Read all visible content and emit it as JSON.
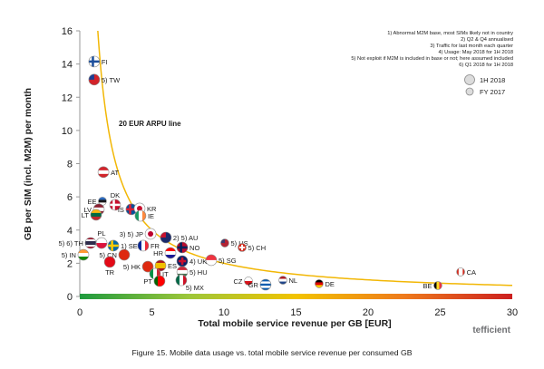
{
  "caption": "Figure 15. Mobile data usage vs. total mobile service revenue per consumed GB",
  "logo": "tefficient",
  "notes": [
    "1) Abnormal M2M base, most SIMs likely not in country",
    "2) Q2 & Q4 annualised",
    "3) Traffic for last month each quarter",
    "4) Usage: May 2018 for 1H 2018",
    "5) Not exploit if M2M is included in base or not; here assumed included",
    "6) Q1 2018 for 1H 2018"
  ],
  "legend": {
    "position": "top-right",
    "items": [
      {
        "label": "1H 2018",
        "marker": "large-circle"
      },
      {
        "label": "FY 2017",
        "marker": "small-circle"
      }
    ]
  },
  "colors": {
    "curve": "#f2b705",
    "curve_label": "#f2a900",
    "axis_line": "#9a9a9a",
    "axis_bar": [
      "#1e9a3e",
      "#9cc63a",
      "#f2c300",
      "#ee7a1c",
      "#cc1f1f"
    ],
    "legend_marker": "#dcdcdc"
  },
  "chart_data": {
    "type": "scatter",
    "xlabel": "Total mobile service revenue per GB [EUR]",
    "ylabel": "GB per SIM (incl. M2M) per month",
    "xlim": [
      0,
      30
    ],
    "ylim": [
      0,
      16
    ],
    "xticks": [
      0,
      5,
      10,
      15,
      20,
      25,
      30
    ],
    "yticks": [
      0,
      2,
      4,
      6,
      8,
      10,
      12,
      14,
      16
    ],
    "grid": false,
    "reference_curve": {
      "label": "20 EUR ARPU line",
      "arpu": 20
    },
    "points": [
      {
        "label": "FI",
        "x": 1.0,
        "y": 14.15,
        "period": "1H 2018",
        "label_side": "right",
        "flag": {
          "style": "cross",
          "colors": [
            "#ffffff",
            "#1d4f9c"
          ]
        }
      },
      {
        "label": "5) TW",
        "x": 1.0,
        "y": 13.06,
        "period": "1H 2018",
        "label_side": "right",
        "flag": {
          "style": "canton",
          "colors": [
            "#d2232a",
            "#1b3f95"
          ]
        }
      },
      {
        "label": "AT",
        "x": 1.64,
        "y": 7.49,
        "period": "1H 2018",
        "label_side": "right",
        "flag": {
          "style": "h",
          "colors": [
            "#d2232a",
            "#ffffff",
            "#d2232a"
          ]
        }
      },
      {
        "label": "DK",
        "x": 2.45,
        "y": 5.52,
        "period": "1H 2018",
        "label_side": "above",
        "flag": {
          "style": "cross",
          "colors": [
            "#c8102e",
            "#ffffff"
          ]
        }
      },
      {
        "label": "EE",
        "x": 1.57,
        "y": 5.74,
        "period": "FY 2017",
        "label_side": "left",
        "flag": {
          "style": "h",
          "colors": [
            "#2b6cc4",
            "#1a1a1a",
            "#ffffff"
          ]
        }
      },
      {
        "label": "LV",
        "x": 1.32,
        "y": 5.25,
        "period": "1H 2018",
        "label_side": "left",
        "flag": {
          "style": "h",
          "colors": [
            "#8c2031",
            "#ffffff",
            "#8c2031"
          ]
        }
      },
      {
        "label": "LT",
        "x": 1.13,
        "y": 4.92,
        "period": "1H 2018",
        "label_side": "left",
        "flag": {
          "style": "h",
          "colors": [
            "#fdb913",
            "#006a44",
            "#c1272d"
          ]
        }
      },
      {
        "label": "IS",
        "x": 3.58,
        "y": 5.25,
        "period": "1H 2018",
        "label_side": "left",
        "flag": {
          "style": "cross",
          "colors": [
            "#02529c",
            "#dc1e35"
          ]
        }
      },
      {
        "label": "KR",
        "x": 4.15,
        "y": 5.3,
        "period": "1H 2018",
        "label_side": "right",
        "flag": {
          "style": "disc",
          "colors": [
            "#ffffff",
            "#c8102e"
          ]
        }
      },
      {
        "label": "IE",
        "x": 4.21,
        "y": 4.86,
        "period": "1H 2018",
        "label_side": "right",
        "flag": {
          "style": "v",
          "colors": [
            "#169b62",
            "#ffffff",
            "#ff883e"
          ]
        }
      },
      {
        "label": "3) 5) JP",
        "x": 4.91,
        "y": 3.77,
        "period": "1H 2018",
        "label_side": "left",
        "flag": {
          "style": "disc",
          "colors": [
            "#ffffff",
            "#bc002d"
          ]
        }
      },
      {
        "label": "2) 5) AU",
        "x": 5.97,
        "y": 3.55,
        "period": "1H 2018",
        "label_side": "right",
        "flag": {
          "style": "canton",
          "colors": [
            "#1b2a6b",
            "#c8102e"
          ]
        }
      },
      {
        "label": "5) US",
        "x": 10.06,
        "y": 3.22,
        "period": "FY 2017",
        "label_side": "right",
        "flag": {
          "style": "canton",
          "colors": [
            "#b22234",
            "#3c3b6e"
          ]
        }
      },
      {
        "label": "5) CH",
        "x": 11.26,
        "y": 2.95,
        "period": "FY 2017",
        "label_side": "right",
        "flag": {
          "style": "plus",
          "colors": [
            "#d52b1e",
            "#ffffff"
          ]
        }
      },
      {
        "label": "NO",
        "x": 7.11,
        "y": 2.95,
        "period": "1H 2018",
        "label_side": "right",
        "flag": {
          "style": "cross",
          "colors": [
            "#ba0c2f",
            "#00205b"
          ]
        }
      },
      {
        "label": "5) 6) TH",
        "x": 0.75,
        "y": 3.22,
        "period": "1H 2018",
        "label_side": "left",
        "flag": {
          "style": "h",
          "colors": [
            "#a51931",
            "#f4f5f8",
            "#2d2a4a",
            "#2d2a4a",
            "#f4f5f8",
            "#a51931"
          ]
        }
      },
      {
        "label": "PL",
        "x": 1.51,
        "y": 3.22,
        "period": "1H 2018",
        "label_side": "above",
        "flag": {
          "style": "h",
          "colors": [
            "#ffffff",
            "#dc143c"
          ]
        }
      },
      {
        "label": "5) IN",
        "x": 0.25,
        "y": 2.51,
        "period": "1H 2018",
        "label_side": "left",
        "flag": {
          "style": "h",
          "colors": [
            "#ff9933",
            "#ffffff",
            "#138808"
          ]
        }
      },
      {
        "label": "5) CN",
        "x": 3.08,
        "y": 2.51,
        "period": "1H 2018",
        "label_side": "left",
        "flag": {
          "style": "solid",
          "colors": [
            "#de2910"
          ]
        }
      },
      {
        "label": "1) SE",
        "x": 2.33,
        "y": 3.06,
        "period": "1H 2018",
        "label_side": "right",
        "flag": {
          "style": "cross",
          "colors": [
            "#006aa7",
            "#fecc00"
          ]
        }
      },
      {
        "label": "TR",
        "x": 2.08,
        "y": 2.08,
        "period": "1H 2018",
        "label_side": "below",
        "flag": {
          "style": "solid",
          "colors": [
            "#e30a17"
          ]
        }
      },
      {
        "label": "FR",
        "x": 4.4,
        "y": 3.06,
        "period": "1H 2018",
        "label_side": "right",
        "flag": {
          "style": "v",
          "colors": [
            "#002395",
            "#ffffff",
            "#ed2939"
          ]
        }
      },
      {
        "label": "5) HK",
        "x": 4.72,
        "y": 1.8,
        "period": "1H 2018",
        "label_side": "left",
        "flag": {
          "style": "solid",
          "colors": [
            "#de2910"
          ]
        }
      },
      {
        "label": "ES",
        "x": 5.6,
        "y": 1.86,
        "period": "1H 2018",
        "label_side": "right",
        "flag": {
          "style": "h",
          "colors": [
            "#aa151b",
            "#f1bf00",
            "#f1bf00",
            "#aa151b"
          ]
        }
      },
      {
        "label": "IT",
        "x": 5.22,
        "y": 1.37,
        "period": "1H 2018",
        "label_side": "right",
        "flag": {
          "style": "v",
          "colors": [
            "#009246",
            "#ffffff",
            "#ce2b37"
          ]
        }
      },
      {
        "label": "HR",
        "x": 6.29,
        "y": 2.62,
        "period": "1H 2018",
        "label_side": "left",
        "flag": {
          "style": "h",
          "colors": [
            "#ff0000",
            "#ffffff",
            "#171796"
          ]
        }
      },
      {
        "label": "4) UK",
        "x": 7.11,
        "y": 2.13,
        "period": "1H 2018",
        "label_side": "right",
        "flag": {
          "style": "plus",
          "colors": [
            "#012169",
            "#c8102e"
          ]
        }
      },
      {
        "label": "5) SG",
        "x": 9.12,
        "y": 2.19,
        "period": "1H 2018",
        "label_side": "right",
        "flag": {
          "style": "h",
          "colors": [
            "#ef3340",
            "#ffffff"
          ]
        }
      },
      {
        "label": "5) HU",
        "x": 7.11,
        "y": 1.48,
        "period": "1H 2018",
        "label_side": "right",
        "flag": {
          "style": "h",
          "colors": [
            "#ce2939",
            "#ffffff",
            "#477050"
          ]
        }
      },
      {
        "label": "PT",
        "x": 5.53,
        "y": 0.93,
        "period": "1H 2018",
        "label_side": "left",
        "flag": {
          "style": "v",
          "colors": [
            "#006600",
            "#ff0000",
            "#ff0000"
          ]
        }
      },
      {
        "label": "5) MX",
        "x": 7.04,
        "y": 0.98,
        "period": "1H 2018",
        "label_side": "below-right",
        "flag": {
          "style": "v",
          "colors": [
            "#006847",
            "#ffffff",
            "#ce1126"
          ]
        }
      },
      {
        "label": "CZ",
        "x": 11.7,
        "y": 0.93,
        "period": "FY 2017",
        "label_side": "left",
        "flag": {
          "style": "h",
          "colors": [
            "#ffffff",
            "#d7141a"
          ]
        }
      },
      {
        "label": "GR",
        "x": 12.89,
        "y": 0.71,
        "period": "1H 2018",
        "label_side": "left",
        "flag": {
          "style": "h",
          "colors": [
            "#0d5eaf",
            "#ffffff",
            "#0d5eaf",
            "#ffffff",
            "#0d5eaf"
          ]
        }
      },
      {
        "label": "NL",
        "x": 14.09,
        "y": 0.98,
        "period": "FY 2017",
        "label_side": "right",
        "flag": {
          "style": "h",
          "colors": [
            "#ae1c28",
            "#ffffff",
            "#21468b"
          ]
        }
      },
      {
        "label": "DE",
        "x": 16.6,
        "y": 0.77,
        "period": "FY 2017",
        "label_side": "right",
        "flag": {
          "style": "h",
          "colors": [
            "#000000",
            "#dd0000",
            "#ffce00"
          ]
        }
      },
      {
        "label": "BE",
        "x": 24.84,
        "y": 0.66,
        "period": "FY 2017",
        "label_side": "left",
        "flag": {
          "style": "v",
          "colors": [
            "#000000",
            "#fdda24",
            "#ef3340"
          ]
        }
      },
      {
        "label": "CA",
        "x": 26.42,
        "y": 1.48,
        "period": "FY 2017",
        "label_side": "right",
        "flag": {
          "style": "v",
          "colors": [
            "#d52b1e",
            "#ffffff",
            "#ffffff",
            "#d52b1e"
          ]
        }
      }
    ]
  }
}
